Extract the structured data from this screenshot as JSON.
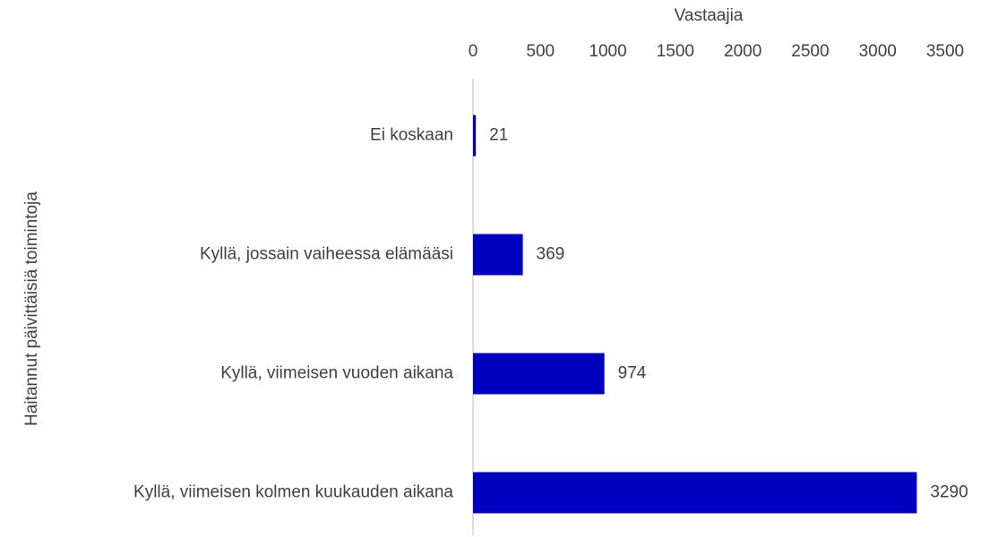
{
  "chart_data": {
    "type": "barh",
    "xlabel": "Vastaajia",
    "ylabel": "Haitannut päivittäisiä toimintoja",
    "categories": [
      "Ei koskaan",
      "Kyllä, jossain vaiheessa elämääsi",
      "Kyllä, viimeisen vuoden aikana",
      "Kyllä, viimeisen kolmen kuukauden aikana"
    ],
    "values": [
      21,
      369,
      974,
      3290
    ],
    "color": "#0000c0",
    "xlim": [
      0,
      3500
    ],
    "xticks": [
      0,
      500,
      1000,
      1500,
      2000,
      2500,
      3000,
      3500
    ],
    "x_axis_position": "top",
    "grid": false
  }
}
